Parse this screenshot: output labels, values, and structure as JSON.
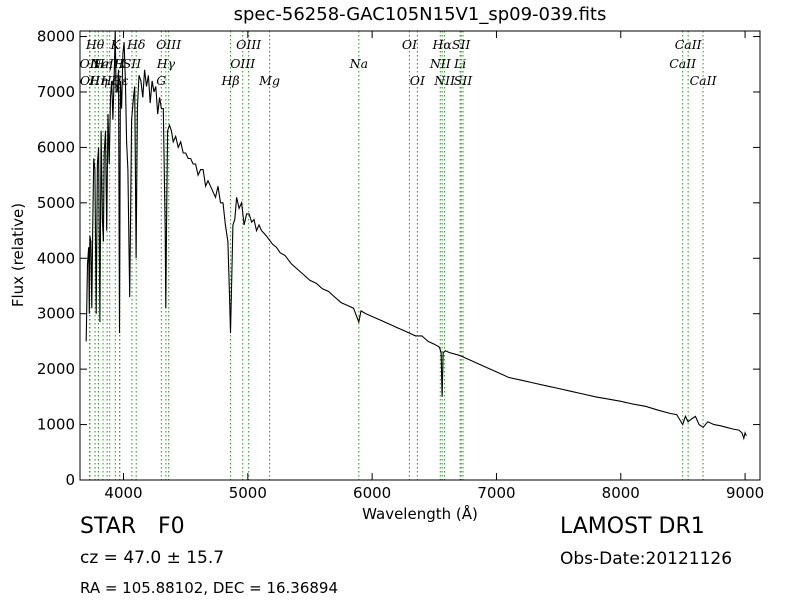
{
  "chart_data": {
    "type": "line",
    "title": "spec-56258-GAC105N15V1_sp09-039.fits",
    "xlabel": "Wavelength (Å)",
    "ylabel": "Flux (relative)",
    "xlim": [
      3650,
      9120
    ],
    "ylim": [
      0,
      8100
    ],
    "xticks": [
      4000,
      5000,
      6000,
      7000,
      8000,
      9000
    ],
    "yticks": [
      0,
      1000,
      2000,
      3000,
      4000,
      5000,
      6000,
      7000,
      8000
    ],
    "grid": false,
    "series": [
      {
        "x": [
          3700,
          3710,
          3720,
          3725,
          3730,
          3738,
          3745,
          3752,
          3760,
          3770,
          3780,
          3790,
          3800,
          3810,
          3820,
          3830,
          3838,
          3845,
          3855,
          3865,
          3875,
          3885,
          3895,
          3905,
          3915,
          3925,
          3933,
          3940,
          3950,
          3960,
          3968,
          3975,
          3985,
          3995,
          4005,
          4015,
          4025,
          4035,
          4050,
          4065,
          4080,
          4090,
          4101,
          4112,
          4125,
          4140,
          4155,
          4170,
          4185,
          4200,
          4215,
          4230,
          4245,
          4260,
          4275,
          4290,
          4305,
          4320,
          4335,
          4340,
          4347,
          4355,
          4370,
          4385,
          4400,
          4420,
          4440,
          4460,
          4480,
          4500,
          4520,
          4540,
          4560,
          4580,
          4600,
          4620,
          4640,
          4660,
          4680,
          4700,
          4720,
          4740,
          4760,
          4780,
          4800,
          4820,
          4840,
          4852,
          4861,
          4870,
          4880,
          4895,
          4910,
          4930,
          4950,
          4970,
          4990,
          5010,
          5030,
          5050,
          5070,
          5090,
          5110,
          5130,
          5150,
          5167,
          5183,
          5200,
          5230,
          5260,
          5300,
          5350,
          5400,
          5450,
          5500,
          5550,
          5600,
          5650,
          5700,
          5750,
          5800,
          5850,
          5893,
          5910,
          5950,
          6000,
          6050,
          6100,
          6150,
          6200,
          6250,
          6300,
          6350,
          6400,
          6450,
          6500,
          6540,
          6555,
          6563,
          6572,
          6590,
          6620,
          6700,
          6800,
          6900,
          7000,
          7100,
          7200,
          7300,
          7400,
          7500,
          7600,
          7700,
          7800,
          7900,
          8000,
          8100,
          8200,
          8300,
          8400,
          8450,
          8498,
          8520,
          8542,
          8570,
          8600,
          8630,
          8662,
          8700,
          8750,
          8800,
          8850,
          8900,
          8950,
          8975,
          8990,
          9000,
          9010
        ],
        "y": [
          2500,
          3900,
          4200,
          3000,
          4400,
          4300,
          3100,
          4500,
          5800,
          5600,
          3000,
          5700,
          6000,
          2850,
          6300,
          4700,
          4300,
          5900,
          6300,
          4500,
          6600,
          5700,
          6900,
          7200,
          6500,
          7300,
          8100,
          7000,
          7000,
          7400,
          2650,
          7200,
          6700,
          7700,
          7900,
          7200,
          6100,
          5600,
          3300,
          6500,
          6900,
          7100,
          4000,
          6700,
          7300,
          7200,
          6900,
          7400,
          7100,
          7300,
          6800,
          7200,
          7000,
          7100,
          6600,
          6900,
          6700,
          6700,
          4500,
          3100,
          4700,
          6300,
          6400,
          6300,
          6100,
          6200,
          6000,
          6100,
          5900,
          5900,
          5800,
          5800,
          5700,
          5700,
          5500,
          5600,
          5600,
          5300,
          5400,
          5300,
          5200,
          5100,
          5300,
          5000,
          5000,
          4600,
          4300,
          3400,
          2650,
          3600,
          4600,
          4700,
          5100,
          4900,
          5000,
          4600,
          4800,
          4800,
          4650,
          4700,
          4500,
          4600,
          4500,
          4450,
          4400,
          4350,
          4300,
          4250,
          4200,
          4100,
          4050,
          3900,
          3800,
          3700,
          3600,
          3550,
          3450,
          3400,
          3300,
          3200,
          3150,
          3100,
          2850,
          3050,
          3000,
          2950,
          2900,
          2850,
          2800,
          2750,
          2700,
          2650,
          2600,
          2600,
          2500,
          2450,
          2400,
          2300,
          1500,
          2300,
          2330,
          2300,
          2250,
          2150,
          2050,
          1950,
          1850,
          1800,
          1750,
          1700,
          1650,
          1600,
          1550,
          1500,
          1460,
          1420,
          1370,
          1330,
          1260,
          1200,
          1180,
          1000,
          1150,
          1050,
          1100,
          1150,
          1000,
          950,
          1050,
          1000,
          980,
          950,
          920,
          900,
          850,
          750,
          850,
          800
        ]
      }
    ],
    "lines": [
      {
        "x": 3727,
        "label": "OII",
        "row": 1
      },
      {
        "x": 3730,
        "label": "OII",
        "row": 2
      },
      {
        "x": 3771,
        "label": "Hθ",
        "row": 0
      },
      {
        "x": 3798,
        "label": "Hη",
        "row": 2
      },
      {
        "x": 3835,
        "label": "Hη",
        "row": 1
      },
      {
        "x": 3868,
        "label": "NeIII",
        "row": 1
      },
      {
        "x": 3889,
        "label": "Hζ",
        "row": 2
      },
      {
        "x": 3934,
        "label": "K",
        "row": 0
      },
      {
        "x": 3969,
        "label": "H",
        "row": 1
      },
      {
        "x": 3970,
        "label": "Hε",
        "row": 2
      },
      {
        "x": 4068,
        "label": "SII",
        "row": 1
      },
      {
        "x": 4102,
        "label": "Hδ",
        "row": 0
      },
      {
        "x": 4304,
        "label": "G",
        "row": 2
      },
      {
        "x": 4341,
        "label": "Hγ",
        "row": 1
      },
      {
        "x": 4363,
        "label": "OIII",
        "row": 0
      },
      {
        "x": 4861,
        "label": "Hβ",
        "row": 2
      },
      {
        "x": 4959,
        "label": "OIII",
        "row": 1
      },
      {
        "x": 5007,
        "label": "OIII",
        "row": 0
      },
      {
        "x": 5175,
        "label": "Mg",
        "row": 2
      },
      {
        "x": 5893,
        "label": "Na",
        "row": 1
      },
      {
        "x": 6300,
        "label": "OI",
        "row": 0
      },
      {
        "x": 6364,
        "label": "OI",
        "row": 2
      },
      {
        "x": 6548,
        "label": "NII",
        "row": 1
      },
      {
        "x": 6563,
        "label": "Hα",
        "row": 0
      },
      {
        "x": 6583,
        "label": "NII",
        "row": 2
      },
      {
        "x": 6708,
        "label": "Li",
        "row": 1
      },
      {
        "x": 6716,
        "label": "SII",
        "row": 0
      },
      {
        "x": 6731,
        "label": "SII",
        "row": 2
      },
      {
        "x": 8498,
        "label": "CaII",
        "row": 1
      },
      {
        "x": 8542,
        "label": "CaII",
        "row": 0
      },
      {
        "x": 8662,
        "label": "CaII",
        "row": 2
      }
    ],
    "line_color": "#000000",
    "marker_color": "#00aa00"
  },
  "info": {
    "class": "STAR",
    "subclass": "F0",
    "cz": "cz = 47.0 ± 15.7",
    "coords": "RA = 105.88102, DEC = 16.36894",
    "survey": "LAMOST DR1",
    "obsdate": "Obs-Date:20121126"
  }
}
